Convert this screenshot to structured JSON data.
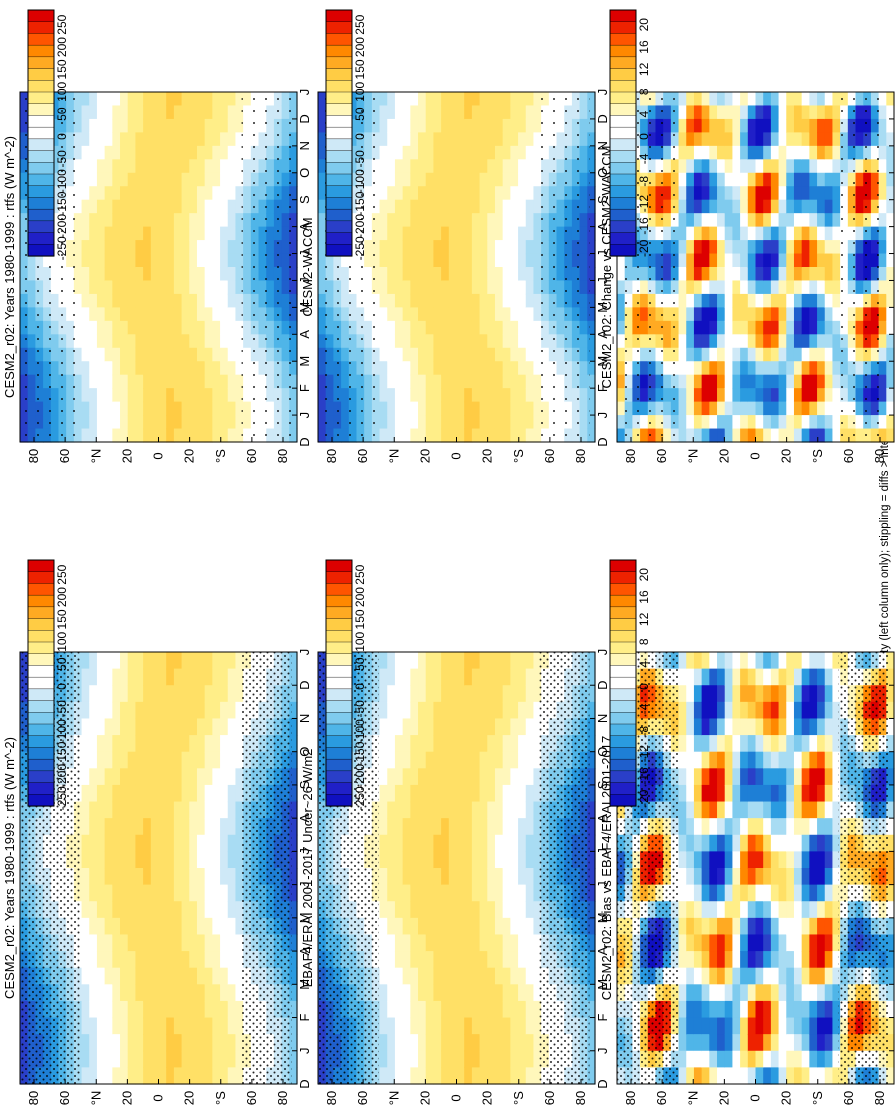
{
  "footer_note": "hatching = diffs > internal var-obs uncertainty (left column only); stippling = diffs > internal var only (both columns)",
  "colorbars": {
    "flux": {
      "labels": [
        "250",
        "200",
        "150",
        "100",
        "50",
        "0",
        "-50",
        "-100",
        "-150",
        "-200",
        "-250"
      ],
      "colors": [
        "#dd0000",
        "#ee2200",
        "#ff5500",
        "#ff8800",
        "#ffaa22",
        "#ffcc44",
        "#ffe066",
        "#ffee88",
        "#fff7bb",
        "#ffffff",
        "#ffffff",
        "#cfe9f7",
        "#a8dcf3",
        "#7fcbee",
        "#4fb5e8",
        "#2a9be0",
        "#1e7fd6",
        "#1f5fcc",
        "#2a3fc8",
        "#2020c8",
        "#1010c0"
      ]
    },
    "diff": {
      "labels": [
        "20",
        "16",
        "12",
        "8",
        "4",
        "0",
        "-4",
        "-8",
        "-12",
        "-16",
        "-20"
      ],
      "colors": [
        "#dd0000",
        "#ee2200",
        "#ff5500",
        "#ff8800",
        "#ffaa22",
        "#ffcc44",
        "#ffe066",
        "#ffee88",
        "#fff7bb",
        "#ffffff",
        "#ffffff",
        "#cfe9f7",
        "#a8dcf3",
        "#7fcbee",
        "#4fb5e8",
        "#2a9be0",
        "#1e7fd6",
        "#1f5fcc",
        "#2a3fc8",
        "#2020c8",
        "#1010c0"
      ]
    }
  },
  "chart_data": [
    {
      "type": "heatmap",
      "panel": "left-top",
      "title": "CESM2_r02: Years 1980-1999 : rtfs (W m^-2)",
      "variable": "rtfs",
      "units": "W m^-2",
      "x_ticks": [
        "D",
        "J",
        "F",
        "M",
        "A",
        "M",
        "J",
        "J",
        "A",
        "S",
        "O",
        "N",
        "D",
        "J"
      ],
      "y_ticks": [
        "80",
        "60",
        "°N",
        "20",
        "0",
        "20",
        "°S",
        "60",
        "80"
      ],
      "ylim": [
        -90,
        90
      ],
      "colorbar": "flux",
      "zlim": [
        -250,
        250
      ],
      "hatching": true,
      "stippling": true
    },
    {
      "type": "heatmap",
      "panel": "left-middle",
      "title": "EBAF4/ERAI 2001-2017 Uncer~26 W/m2",
      "variable": "rtfs",
      "units": "W m^-2",
      "x_ticks": [
        "D",
        "J",
        "F",
        "M",
        "A",
        "M",
        "J",
        "J",
        "A",
        "S",
        "O",
        "N",
        "D",
        "J"
      ],
      "y_ticks": [
        "80",
        "60",
        "°N",
        "20",
        "0",
        "20",
        "°S",
        "60",
        "80"
      ],
      "ylim": [
        -90,
        90
      ],
      "colorbar": "flux",
      "zlim": [
        -250,
        250
      ],
      "hatching": true,
      "stippling": true
    },
    {
      "type": "heatmap",
      "panel": "left-bottom",
      "title": "CESM2_r02: Bias vs EBAF4/ERAI 2001-2017",
      "variable": "rtfs bias",
      "units": "W m^-2",
      "x_ticks": [
        "D",
        "J",
        "F",
        "M",
        "A",
        "M",
        "J",
        "J",
        "A",
        "S",
        "O",
        "N",
        "D",
        "J"
      ],
      "y_ticks": [
        "80",
        "60",
        "°N",
        "20",
        "0",
        "20",
        "°S",
        "60",
        "80"
      ],
      "ylim": [
        -90,
        90
      ],
      "colorbar": "diff",
      "zlim": [
        -20,
        20
      ],
      "hatching": true,
      "stippling": true
    },
    {
      "type": "heatmap",
      "panel": "right-top",
      "title": "CESM2_r02: Years 1980-1999 : rtfs (W m^-2)",
      "variable": "rtfs",
      "units": "W m^-2",
      "x_ticks": [
        "D",
        "J",
        "F",
        "M",
        "A",
        "M",
        "J",
        "J",
        "A",
        "S",
        "O",
        "N",
        "D",
        "J"
      ],
      "y_ticks": [
        "80",
        "60",
        "°N",
        "20",
        "0",
        "20",
        "°S",
        "60",
        "80"
      ],
      "ylim": [
        -90,
        90
      ],
      "colorbar": "flux",
      "zlim": [
        -250,
        250
      ],
      "hatching": false,
      "stippling": true
    },
    {
      "type": "heatmap",
      "panel": "right-middle",
      "title": "CESM2-WACCM",
      "variable": "rtfs",
      "units": "W m^-2",
      "x_ticks": [
        "D",
        "J",
        "F",
        "M",
        "A",
        "M",
        "J",
        "J",
        "A",
        "S",
        "O",
        "N",
        "D",
        "J"
      ],
      "y_ticks": [
        "80",
        "60",
        "°N",
        "20",
        "0",
        "20",
        "°S",
        "60",
        "80"
      ],
      "ylim": [
        -90,
        90
      ],
      "colorbar": "flux",
      "zlim": [
        -250,
        250
      ],
      "hatching": false,
      "stippling": true
    },
    {
      "type": "heatmap",
      "panel": "right-bottom",
      "title": "CESM2_r02: Change vs CESM2-WACCM",
      "variable": "rtfs difference",
      "units": "W m^-2",
      "x_ticks": [
        "D",
        "J",
        "F",
        "M",
        "A",
        "M",
        "J",
        "J",
        "A",
        "S",
        "O",
        "N",
        "D",
        "J"
      ],
      "y_ticks": [
        "80",
        "60",
        "°N",
        "20",
        "0",
        "20",
        "°S",
        "60",
        "80"
      ],
      "ylim": [
        -90,
        90
      ],
      "colorbar": "diff",
      "zlim": [
        -20,
        20
      ],
      "hatching": false,
      "stippling": true
    }
  ]
}
